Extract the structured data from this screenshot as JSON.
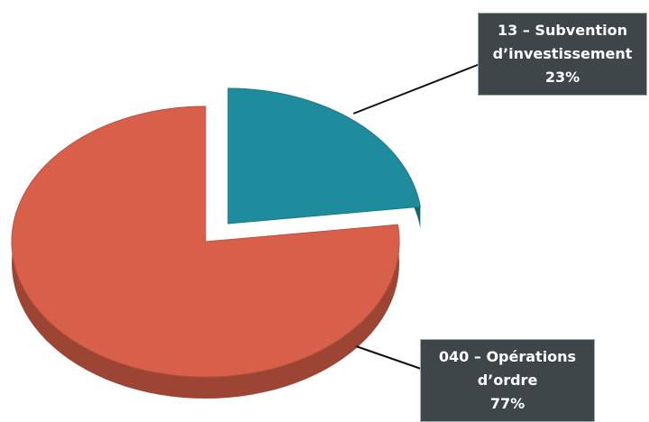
{
  "chart_data": {
    "type": "pie",
    "categories": [
      "13 – Subvention d’investissement",
      "040 – Opérations d’ordre"
    ],
    "values": [
      23,
      77
    ],
    "value_labels": [
      "23%",
      "77%"
    ],
    "colors": [
      "#1f8c9e",
      "#d8604a"
    ]
  }
}
